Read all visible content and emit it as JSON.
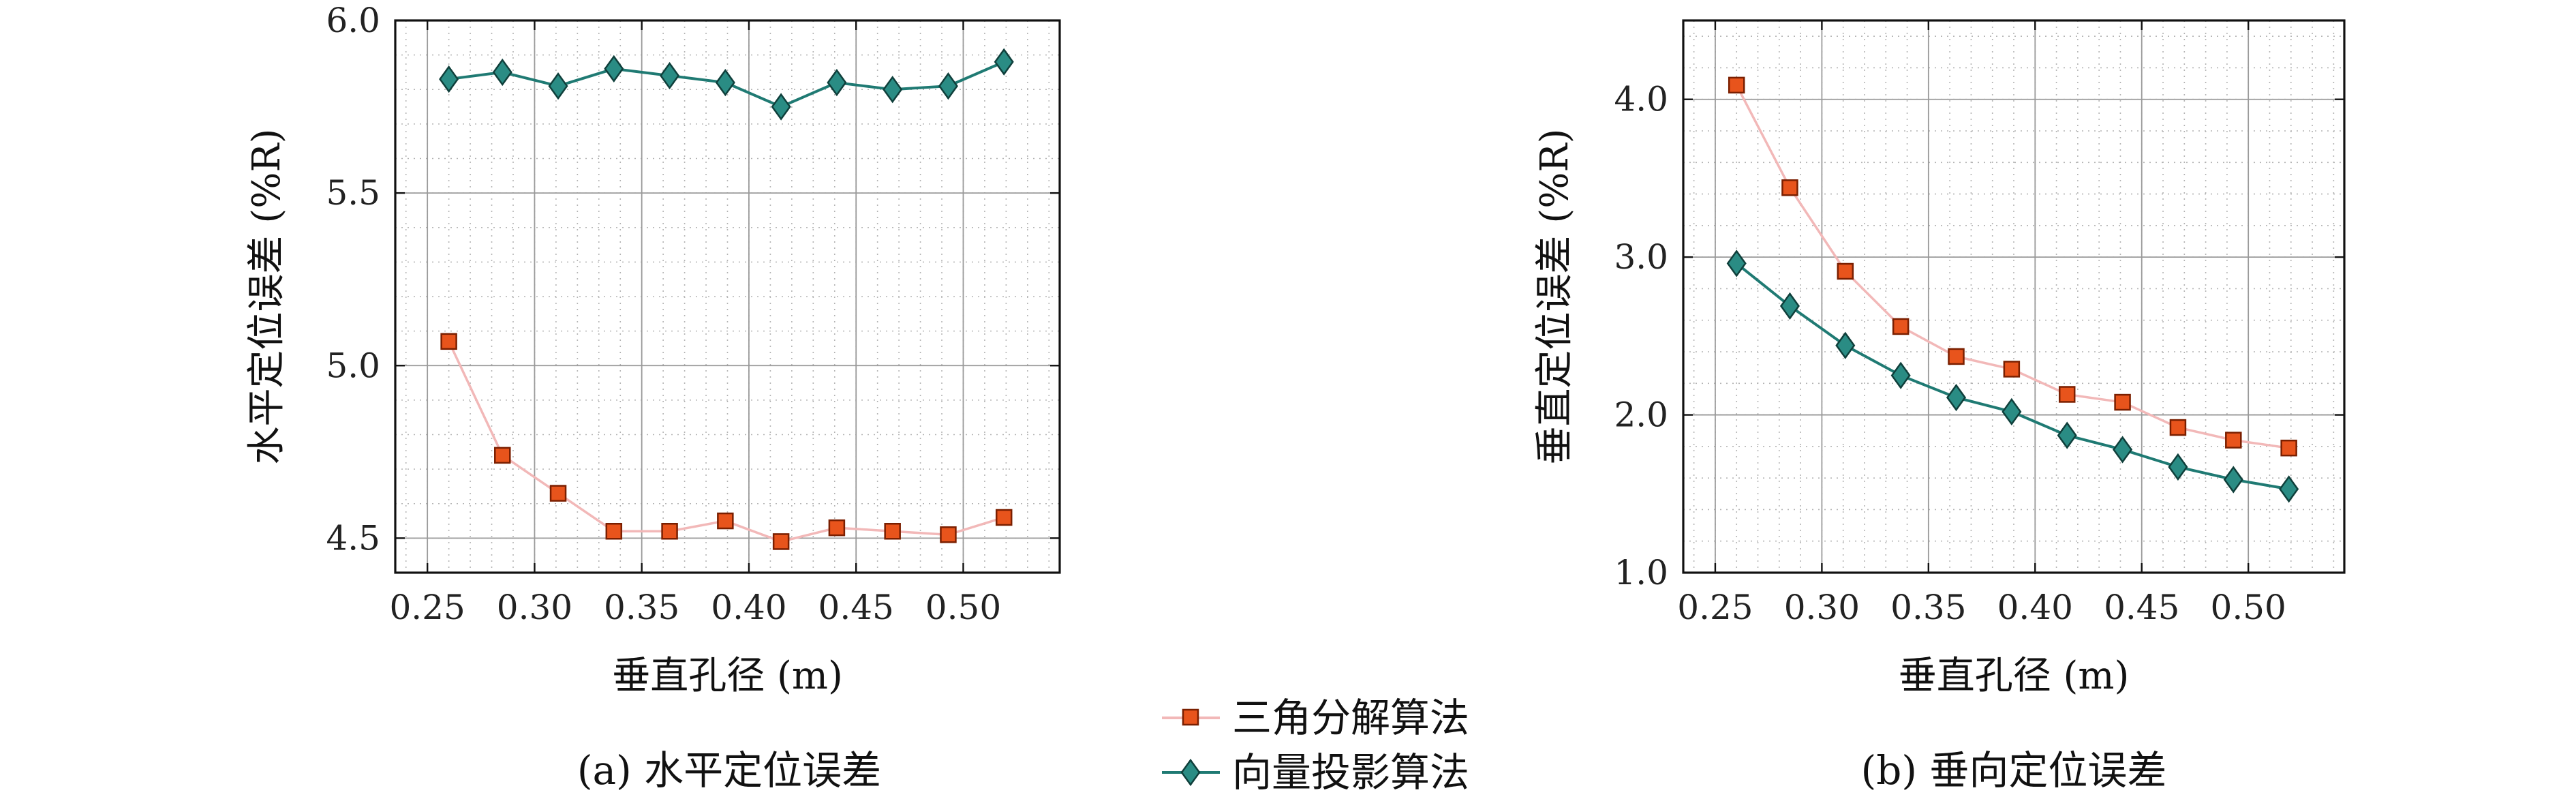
{
  "chart_data": [
    {
      "type": "line",
      "caption": "(a) 水平定位误差",
      "xlabel": "垂直孔径 (m)",
      "ylabel": "水平定位误差 (%R)",
      "xlim": [
        0.235,
        0.545
      ],
      "ylim": [
        4.4,
        6.0
      ],
      "xticks": [
        "0.25",
        "0.30",
        "0.35",
        "0.40",
        "0.45",
        "0.50"
      ],
      "yticks": [
        "4.5",
        "5.0",
        "5.5",
        "6.0"
      ],
      "grid": true,
      "x": [
        0.26,
        0.285,
        0.311,
        0.337,
        0.363,
        0.389,
        0.415,
        0.441,
        0.467,
        0.493,
        0.519
      ],
      "series": [
        {
          "name": "三角分解算法",
          "marker": "square",
          "color": "#f2b8b8",
          "marker_fill": "#e8541c",
          "values": [
            5.07,
            4.74,
            4.63,
            4.52,
            4.52,
            4.55,
            4.49,
            4.53,
            4.52,
            4.51,
            4.56
          ]
        },
        {
          "name": "向量投影算法",
          "marker": "diamond",
          "color": "#1f7a73",
          "marker_fill": "#2a8c84",
          "values": [
            5.83,
            5.85,
            5.81,
            5.86,
            5.84,
            5.82,
            5.75,
            5.82,
            5.8,
            5.81,
            5.88
          ]
        }
      ]
    },
    {
      "type": "line",
      "caption": "(b) 垂向定位误差",
      "xlabel": "垂直孔径 (m)",
      "ylabel": "垂直定位误差 (%R)",
      "xlim": [
        0.235,
        0.545
      ],
      "ylim": [
        1.0,
        4.5
      ],
      "xticks": [
        "0.25",
        "0.30",
        "0.35",
        "0.40",
        "0.45",
        "0.50"
      ],
      "yticks": [
        "1.0",
        "2.0",
        "3.0",
        "4.0"
      ],
      "grid": true,
      "x": [
        0.26,
        0.285,
        0.311,
        0.337,
        0.363,
        0.389,
        0.415,
        0.441,
        0.467,
        0.493,
        0.519
      ],
      "series": [
        {
          "name": "三角分解算法",
          "marker": "square",
          "color": "#f2b8b8",
          "marker_fill": "#e8541c",
          "values": [
            4.09,
            3.44,
            2.91,
            2.56,
            2.37,
            2.29,
            2.13,
            2.08,
            1.92,
            1.84,
            1.79
          ]
        },
        {
          "name": "向量投影算法",
          "marker": "diamond",
          "color": "#1f7a73",
          "marker_fill": "#2a8c84",
          "values": [
            2.96,
            2.69,
            2.44,
            2.25,
            2.11,
            2.02,
            1.87,
            1.78,
            1.67,
            1.59,
            1.53
          ]
        }
      ]
    }
  ],
  "legend": {
    "placement": "bottom-center",
    "items": [
      "三角分解算法",
      "向量投影算法"
    ]
  }
}
